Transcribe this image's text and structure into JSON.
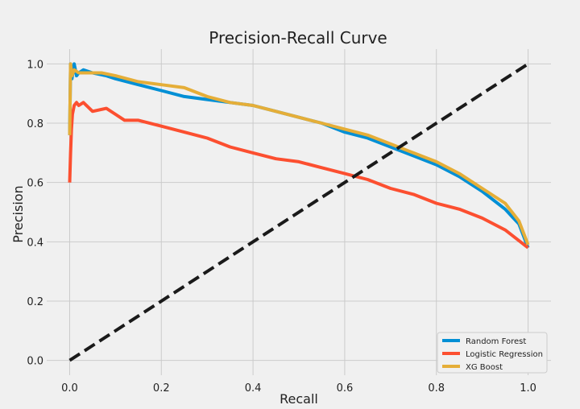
{
  "chart_data": {
    "type": "line",
    "title": "Precision-Recall Curve",
    "xlabel": "Recall",
    "ylabel": "Precision",
    "xlim": [
      -0.05,
      1.05
    ],
    "ylim": [
      -0.05,
      1.05
    ],
    "xticks": [
      0.0,
      0.2,
      0.4,
      0.6,
      0.8,
      1.0
    ],
    "xtick_labels": [
      "0.0",
      "0.2",
      "0.4",
      "0.6",
      "0.8",
      "1.0"
    ],
    "yticks": [
      0.0,
      0.2,
      0.4,
      0.6,
      0.8,
      1.0
    ],
    "ytick_labels": [
      "0.0",
      "0.2",
      "0.4",
      "0.6",
      "0.8",
      "1.0"
    ],
    "grid": true,
    "legend_position": "lower-right",
    "series": [
      {
        "name": "Random Forest",
        "color": "#008fd5",
        "x": [
          0.0,
          0.002,
          0.005,
          0.01,
          0.015,
          0.02,
          0.03,
          0.05,
          0.08,
          0.1,
          0.15,
          0.2,
          0.25,
          0.3,
          0.35,
          0.4,
          0.45,
          0.5,
          0.55,
          0.6,
          0.65,
          0.7,
          0.75,
          0.8,
          0.85,
          0.9,
          0.95,
          0.98,
          1.0
        ],
        "y": [
          0.76,
          1.0,
          0.95,
          1.0,
          0.96,
          0.97,
          0.98,
          0.97,
          0.96,
          0.95,
          0.93,
          0.91,
          0.89,
          0.88,
          0.87,
          0.86,
          0.84,
          0.82,
          0.8,
          0.77,
          0.75,
          0.72,
          0.69,
          0.66,
          0.62,
          0.57,
          0.51,
          0.46,
          0.38
        ]
      },
      {
        "name": "Logistic Regression",
        "color": "#fc4f30",
        "x": [
          0.0,
          0.002,
          0.004,
          0.006,
          0.01,
          0.015,
          0.02,
          0.03,
          0.05,
          0.08,
          0.1,
          0.12,
          0.15,
          0.2,
          0.25,
          0.3,
          0.35,
          0.4,
          0.45,
          0.5,
          0.55,
          0.6,
          0.65,
          0.7,
          0.75,
          0.8,
          0.85,
          0.9,
          0.95,
          1.0
        ],
        "y": [
          0.6,
          0.7,
          0.78,
          0.83,
          0.86,
          0.87,
          0.86,
          0.87,
          0.84,
          0.85,
          0.83,
          0.81,
          0.81,
          0.79,
          0.77,
          0.75,
          0.72,
          0.7,
          0.68,
          0.67,
          0.65,
          0.63,
          0.61,
          0.58,
          0.56,
          0.53,
          0.51,
          0.48,
          0.44,
          0.38
        ]
      },
      {
        "name": "XG Boost",
        "color": "#e5ae38",
        "x": [
          0.0,
          0.002,
          0.005,
          0.01,
          0.02,
          0.04,
          0.07,
          0.1,
          0.15,
          0.2,
          0.25,
          0.3,
          0.35,
          0.4,
          0.45,
          0.5,
          0.55,
          0.6,
          0.65,
          0.7,
          0.75,
          0.8,
          0.85,
          0.9,
          0.95,
          0.98,
          1.0
        ],
        "y": [
          0.76,
          1.0,
          0.96,
          0.98,
          0.97,
          0.97,
          0.97,
          0.96,
          0.94,
          0.93,
          0.92,
          0.89,
          0.87,
          0.86,
          0.84,
          0.82,
          0.8,
          0.78,
          0.76,
          0.73,
          0.7,
          0.67,
          0.63,
          0.58,
          0.53,
          0.47,
          0.39
        ]
      },
      {
        "name": "",
        "color": "#1a1a1a",
        "style": "dashed",
        "legend": false,
        "x": [
          0.0,
          1.0
        ],
        "y": [
          0.0,
          1.0
        ]
      }
    ]
  }
}
